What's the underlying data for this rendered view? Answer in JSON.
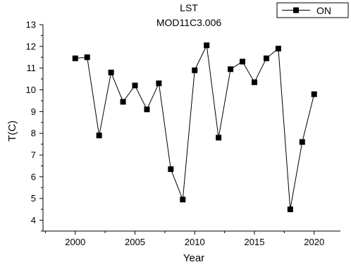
{
  "chart_data": {
    "type": "line",
    "title": "LST",
    "subtitle": "MOD11C3.006",
    "xlabel": "Year",
    "ylabel": "T(C)",
    "xlim": [
      1997.3,
      2022.2
    ],
    "ylim": [
      3.5,
      13
    ],
    "xticks": [
      2000,
      2005,
      2010,
      2015,
      2020
    ],
    "yticks": [
      4,
      5,
      6,
      7,
      8,
      9,
      10,
      11,
      12,
      13
    ],
    "grid": false,
    "legend_position": "top-right",
    "marker": "square",
    "series": [
      {
        "name": "ON",
        "color": "#000000",
        "x": [
          2000,
          2001,
          2002,
          2003,
          2004,
          2005,
          2006,
          2007,
          2008,
          2009,
          2010,
          2011,
          2012,
          2013,
          2014,
          2015,
          2016,
          2017,
          2018,
          2019,
          2020
        ],
        "y": [
          11.45,
          11.5,
          7.9,
          10.8,
          9.45,
          10.2,
          9.1,
          10.3,
          6.35,
          4.95,
          10.9,
          12.05,
          7.8,
          10.95,
          11.3,
          10.35,
          11.45,
          11.9,
          4.5,
          7.6,
          9.8
        ]
      }
    ]
  }
}
